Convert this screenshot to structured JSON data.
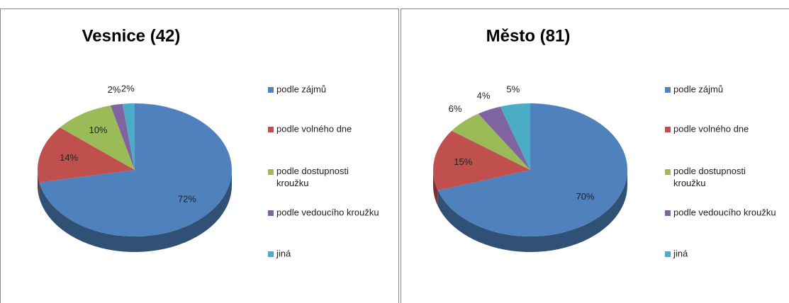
{
  "chart_data": [
    {
      "type": "pie",
      "title": "Vesnice (42)",
      "categories": [
        "podle zájmů",
        "podle volného dne",
        "podle dostupnosti kroužku",
        "podle vedoucího kroužku",
        "jiná"
      ],
      "values": [
        72,
        14,
        10,
        2,
        2
      ],
      "value_labels": [
        "72%",
        "14%",
        "10%",
        "2%",
        "2%"
      ],
      "colors": [
        "#4f81bd",
        "#c0504d",
        "#9bbb59",
        "#8064a2",
        "#4bacc6"
      ],
      "legend": "right"
    },
    {
      "type": "pie",
      "title": "Město (81)",
      "categories": [
        "podle zájmů",
        "podle volného dne",
        "podle dostupnosti kroužku",
        "podle vedoucího kroužku",
        "jiná"
      ],
      "values": [
        70,
        15,
        6,
        4,
        5
      ],
      "value_labels": [
        "70%",
        "15%",
        "6%",
        "4%",
        "5%"
      ],
      "colors": [
        "#4f81bd",
        "#c0504d",
        "#9bbb59",
        "#8064a2",
        "#4bacc6"
      ],
      "legend": "right"
    }
  ]
}
